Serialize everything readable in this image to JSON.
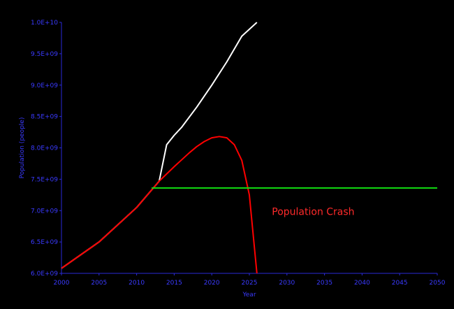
{
  "chart_data": {
    "type": "line",
    "title": "",
    "xlabel": "Year",
    "ylabel": "Population (people)",
    "xlim": [
      2000,
      2050
    ],
    "ylim": [
      6000000000,
      10000000000
    ],
    "x_ticks": [
      2000,
      2005,
      2010,
      2015,
      2020,
      2025,
      2030,
      2035,
      2040,
      2045,
      2050
    ],
    "x_tick_labels": [
      "2000",
      "2005",
      "2010",
      "2015",
      "2020",
      "2025",
      "2030",
      "2035",
      "2040",
      "2045",
      "2050"
    ],
    "y_ticks": [
      6000000000,
      6500000000,
      7000000000,
      7500000000,
      8000000000,
      8500000000,
      9000000000,
      9500000000,
      10000000000
    ],
    "y_tick_labels": [
      "6.0E+09",
      "6.5E+09",
      "7.0E+09",
      "7.5E+09",
      "8.0E+09",
      "8.5E+09",
      "9.0E+09",
      "9.5E+09",
      "1.0E+10"
    ],
    "grid": false,
    "legend": "none",
    "colors": {
      "background": "#000000",
      "axis": "#2a2ad8",
      "tick_text": "#3a3aff",
      "annotation": "#ff2a2a"
    },
    "series": [
      {
        "color": "#ffffff",
        "x": [
          2000,
          2005,
          2010,
          2013,
          2014,
          2015,
          2016,
          2018,
          2020,
          2022,
          2024,
          2026
        ],
        "y": [
          6080000000,
          6500000000,
          7050000000,
          7470000000,
          8050000000,
          8200000000,
          8330000000,
          8650000000,
          9000000000,
          9370000000,
          9780000000,
          10000000000
        ]
      },
      {
        "color": "#ff0000",
        "x": [
          2000,
          2005,
          2010,
          2013,
          2015,
          2017,
          2018,
          2019,
          2020,
          2021,
          2022,
          2023,
          2024,
          2025,
          2026
        ],
        "y": [
          6080000000,
          6500000000,
          7050000000,
          7470000000,
          7700000000,
          7920000000,
          8020000000,
          8100000000,
          8160000000,
          8180000000,
          8160000000,
          8050000000,
          7800000000,
          7250000000,
          6000000000
        ]
      },
      {
        "color": "#11dd11",
        "x": [
          2012,
          2050
        ],
        "y": [
          7360000000,
          7360000000
        ]
      }
    ],
    "annotations": [
      {
        "text": "Population Crash",
        "x": 2028,
        "y": 6930000000,
        "color": "#ff2a2a"
      }
    ]
  }
}
